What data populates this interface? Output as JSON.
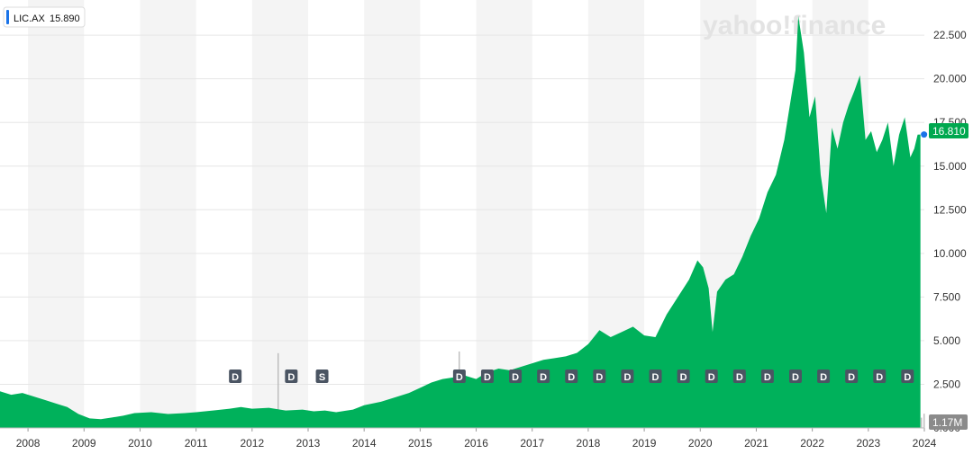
{
  "header": {
    "symbol": "LIC.AX",
    "value": "15.890",
    "accent_color": "#1a73e8"
  },
  "watermark": {
    "brand": "yahoo!finance"
  },
  "badges": {
    "last_price": "16.810",
    "volume": "1.17M"
  },
  "colors": {
    "area": "#00b15b",
    "volume": "#b0b0b0",
    "volume_alt": "#c97c6b",
    "band": "#f4f4f4",
    "marker_bg": "#4b5563",
    "badge_price": "#00a84f",
    "badge_volume": "#8b8b8b",
    "dot": "#1a73e8"
  },
  "chart_data": {
    "type": "area",
    "title": "",
    "xlabel": "",
    "ylabel": "",
    "xlim": [
      2007.5,
      2024.0
    ],
    "ylim": [
      0,
      24
    ],
    "y_ticks": [
      "22.500",
      "20.000",
      "17.500",
      "15.000",
      "12.500",
      "10.000",
      "7.500",
      "5.000",
      "2.500",
      "0.000"
    ],
    "y_tick_values": [
      22.5,
      20,
      17.5,
      15,
      12.5,
      10,
      7.5,
      5,
      2.5,
      0
    ],
    "x_ticks": [
      "2008",
      "2009",
      "2010",
      "2011",
      "2012",
      "2013",
      "2014",
      "2015",
      "2016",
      "2017",
      "2018",
      "2019",
      "2020",
      "2021",
      "2022",
      "2023",
      "2024"
    ],
    "x_tick_values": [
      2008,
      2009,
      2010,
      2011,
      2012,
      2013,
      2014,
      2015,
      2016,
      2017,
      2018,
      2019,
      2020,
      2021,
      2022,
      2023,
      2024
    ],
    "grid": true,
    "series": [
      {
        "x": [
          2007.5,
          2007.7,
          2007.9,
          2008.1,
          2008.3,
          2008.5,
          2008.7,
          2008.9,
          2009.1,
          2009.3,
          2009.5,
          2009.7,
          2009.9,
          2010.2,
          2010.5,
          2010.8,
          2011.0,
          2011.3,
          2011.6,
          2011.8,
          2012.0,
          2012.3,
          2012.6,
          2012.9,
          2013.1,
          2013.3,
          2013.5,
          2013.8,
          2014.0,
          2014.3,
          2014.5,
          2014.8,
          2015.0,
          2015.2,
          2015.4,
          2015.6,
          2015.8,
          2016.0,
          2016.2,
          2016.4,
          2016.6,
          2016.8,
          2017.0,
          2017.2,
          2017.4,
          2017.6,
          2017.8,
          2018.0,
          2018.2,
          2018.4,
          2018.6,
          2018.8,
          2019.0,
          2019.2,
          2019.4,
          2019.6,
          2019.8,
          2019.95,
          2020.05,
          2020.15,
          2020.22,
          2020.3,
          2020.45,
          2020.6,
          2020.75,
          2020.9,
          2021.05,
          2021.2,
          2021.35,
          2021.5,
          2021.6,
          2021.7,
          2021.75,
          2021.85,
          2021.95,
          2022.05,
          2022.15,
          2022.25,
          2022.35,
          2022.45,
          2022.55,
          2022.65,
          2022.75,
          2022.85,
          2022.95,
          2023.05,
          2023.15,
          2023.25,
          2023.35,
          2023.45,
          2023.55,
          2023.65,
          2023.75,
          2023.82,
          2023.88,
          2023.93
        ],
        "y": [
          2.1,
          1.9,
          2.0,
          1.8,
          1.6,
          1.4,
          1.2,
          0.8,
          0.55,
          0.5,
          0.6,
          0.7,
          0.85,
          0.9,
          0.8,
          0.85,
          0.9,
          1.0,
          1.1,
          1.2,
          1.1,
          1.15,
          1.0,
          1.05,
          0.95,
          1.0,
          0.9,
          1.05,
          1.3,
          1.5,
          1.7,
          2.0,
          2.3,
          2.6,
          2.8,
          2.9,
          3.0,
          2.8,
          3.2,
          3.4,
          3.3,
          3.5,
          3.7,
          3.9,
          4.0,
          4.1,
          4.3,
          4.8,
          5.6,
          5.2,
          5.5,
          5.8,
          5.3,
          5.2,
          6.5,
          7.5,
          8.5,
          9.6,
          9.2,
          8.0,
          5.5,
          7.8,
          8.5,
          8.8,
          9.8,
          11.0,
          12.0,
          13.5,
          14.5,
          16.5,
          18.5,
          20.5,
          23.6,
          21.5,
          17.8,
          19.0,
          14.5,
          12.3,
          17.2,
          16.0,
          17.5,
          18.5,
          19.3,
          20.2,
          16.5,
          17.0,
          15.8,
          16.5,
          17.5,
          15.0,
          16.8,
          17.8,
          15.5,
          16.0,
          16.8,
          16.81
        ]
      }
    ],
    "markers": [
      {
        "x": 2011.7,
        "label": "D"
      },
      {
        "x": 2012.7,
        "label": "D"
      },
      {
        "x": 2013.25,
        "label": "S"
      },
      {
        "x": 2015.7,
        "label": "D"
      },
      {
        "x": 2016.2,
        "label": "D"
      },
      {
        "x": 2016.7,
        "label": "D"
      },
      {
        "x": 2017.2,
        "label": "D"
      },
      {
        "x": 2017.7,
        "label": "D"
      },
      {
        "x": 2018.2,
        "label": "D"
      },
      {
        "x": 2018.7,
        "label": "D"
      },
      {
        "x": 2019.2,
        "label": "D"
      },
      {
        "x": 2019.7,
        "label": "D"
      },
      {
        "x": 2020.2,
        "label": "D"
      },
      {
        "x": 2020.7,
        "label": "D"
      },
      {
        "x": 2021.2,
        "label": "D"
      },
      {
        "x": 2021.7,
        "label": "D"
      },
      {
        "x": 2022.2,
        "label": "D"
      },
      {
        "x": 2022.7,
        "label": "D"
      },
      {
        "x": 2023.2,
        "label": "D"
      },
      {
        "x": 2023.7,
        "label": "D"
      }
    ]
  }
}
